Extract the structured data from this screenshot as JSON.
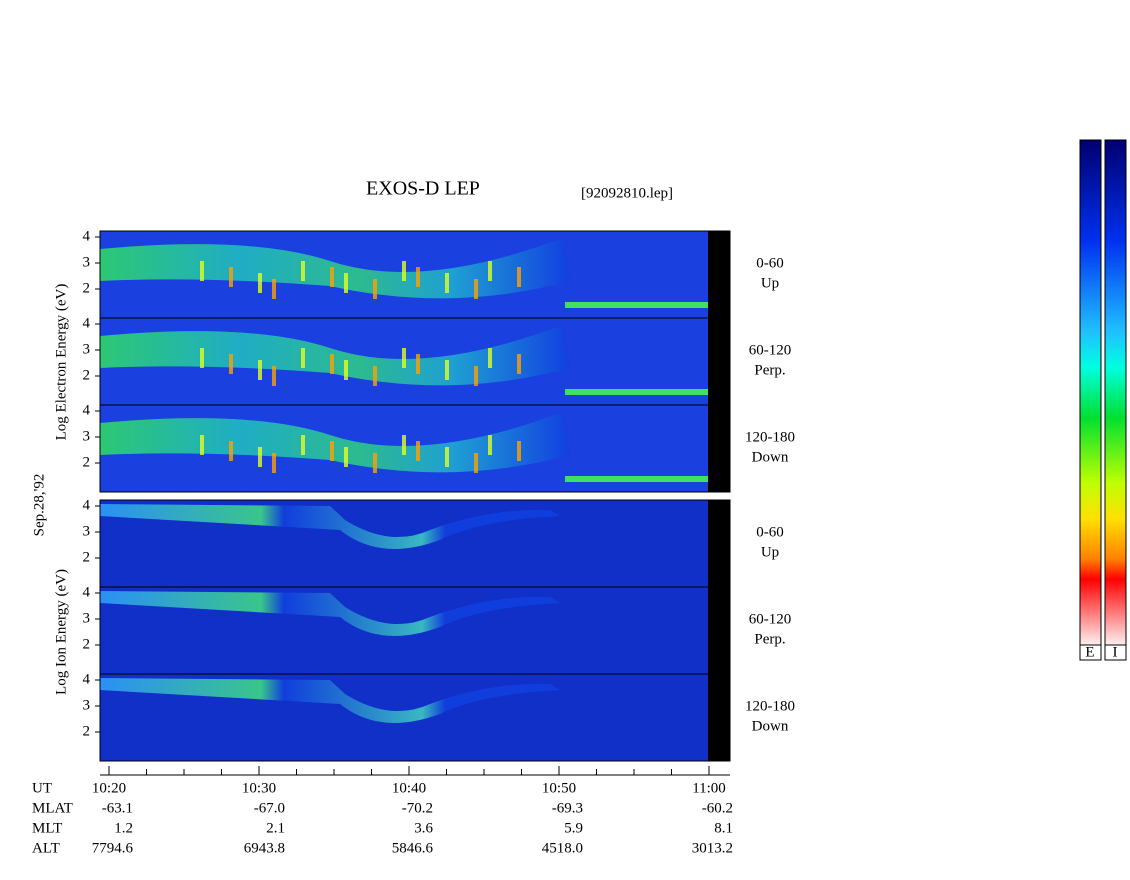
{
  "title": "EXOS-D LEP",
  "file": "[92092810.lep]",
  "date": "Sep.28,'92",
  "electron": {
    "axis_label": "Log Electron Energy (eV)",
    "panels": [
      {
        "angle": "0-60",
        "direction": "Up",
        "yticks": [
          "4",
          "3",
          "2"
        ]
      },
      {
        "angle": "60-120",
        "direction": "Perp.",
        "yticks": [
          "4",
          "3",
          "2"
        ]
      },
      {
        "angle": "120-180",
        "direction": "Down",
        "yticks": [
          "4",
          "3",
          "2"
        ]
      }
    ]
  },
  "ion": {
    "axis_label": "Log Ion Energy (eV)",
    "panels": [
      {
        "angle": "0-60",
        "direction": "Up",
        "yticks": [
          "4",
          "3",
          "2"
        ]
      },
      {
        "angle": "60-120",
        "direction": "Perp.",
        "yticks": [
          "4",
          "3",
          "2"
        ]
      },
      {
        "angle": "120-180",
        "direction": "Down",
        "yticks": [
          "4",
          "3",
          "2"
        ]
      }
    ]
  },
  "colorbar": {
    "labels": [
      "E",
      "I"
    ]
  },
  "ephemeris": {
    "rows": [
      {
        "name": "UT",
        "values": [
          "10:20",
          "10:30",
          "10:40",
          "10:50",
          "11:00"
        ]
      },
      {
        "name": "MLAT",
        "values": [
          "-63.1",
          "-67.0",
          "-70.2",
          "-69.3",
          "-60.2"
        ]
      },
      {
        "name": "MLT",
        "values": [
          "1.2",
          "2.1",
          "3.6",
          "5.9",
          "8.1"
        ]
      },
      {
        "name": "ALT",
        "values": [
          "7794.6",
          "6943.8",
          "5846.6",
          "4518.0",
          "3013.2"
        ]
      }
    ]
  }
}
